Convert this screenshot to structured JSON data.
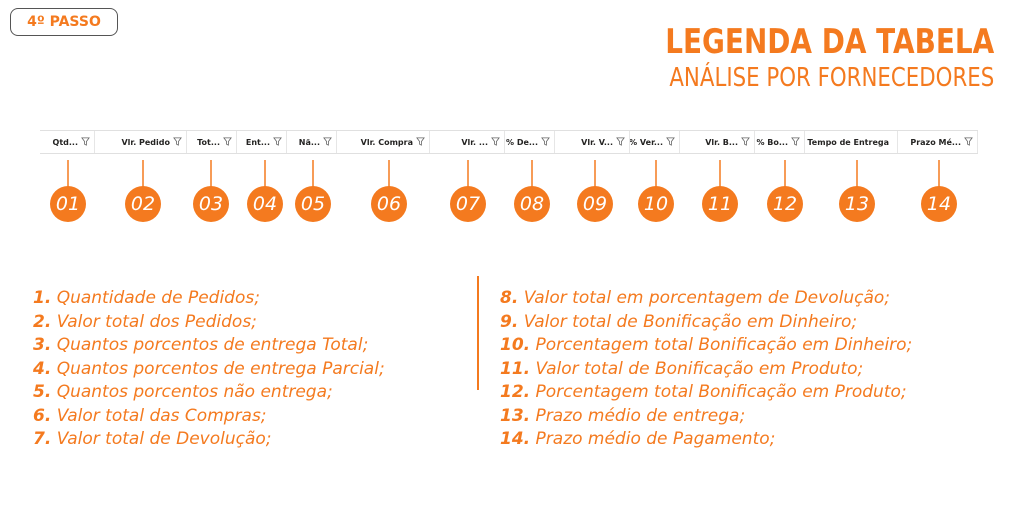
{
  "step_badge": "4º PASSO",
  "title": "LEGENDA DA TABELA",
  "subtitle": "ANÁLISE POR FORNECEDORES",
  "accent_color": "#F47A1F",
  "columns": [
    {
      "label": "Qtd..."
    },
    {
      "label": "Vlr. Pedido"
    },
    {
      "label": "Tot..."
    },
    {
      "label": "Ent..."
    },
    {
      "label": "Nã..."
    },
    {
      "label": "Vlr. Compra"
    },
    {
      "label": "Vlr. ..."
    },
    {
      "label": "% De..."
    },
    {
      "label": "Vlr. V..."
    },
    {
      "label": "% Ver..."
    },
    {
      "label": "Vlr. B..."
    },
    {
      "label": "% Bo..."
    },
    {
      "label": "Tempo de Entrega"
    },
    {
      "label": "Prazo Mé..."
    }
  ],
  "numbers": [
    "01",
    "02",
    "03",
    "04",
    "05",
    "06",
    "07",
    "08",
    "09",
    "10",
    "11",
    "12",
    "13",
    "14"
  ],
  "legend_left": [
    {
      "num": "1.",
      "text": "Quantidade de Pedidos;"
    },
    {
      "num": "2.",
      "text": "Valor total dos Pedidos;"
    },
    {
      "num": "3.",
      "text": "Quantos porcentos de entrega Total;"
    },
    {
      "num": "4.",
      "text": "Quantos porcentos de entrega Parcial;"
    },
    {
      "num": "5.",
      "text": "Quantos porcentos não entrega;"
    },
    {
      "num": "6.",
      "text": "Valor total das Compras;"
    },
    {
      "num": "7.",
      "text": "Valor total de Devolução;"
    }
  ],
  "legend_right": [
    {
      "num": "8.",
      "text": "Valor total em porcentagem de Devolução;"
    },
    {
      "num": "9.",
      "text": "Valor total de Bonificação em Dinheiro;"
    },
    {
      "num": "10.",
      "text": "Porcentagem total Bonificação em Dinheiro;"
    },
    {
      "num": "11.",
      "text": "Valor total de Bonificação em Produto;"
    },
    {
      "num": "12.",
      "text": "Porcentagem total Bonificação em Produto;"
    },
    {
      "num": "13.",
      "text": "Prazo médio de entrega;"
    },
    {
      "num": "14.",
      "text": "Prazo médio de Pagamento;"
    }
  ]
}
